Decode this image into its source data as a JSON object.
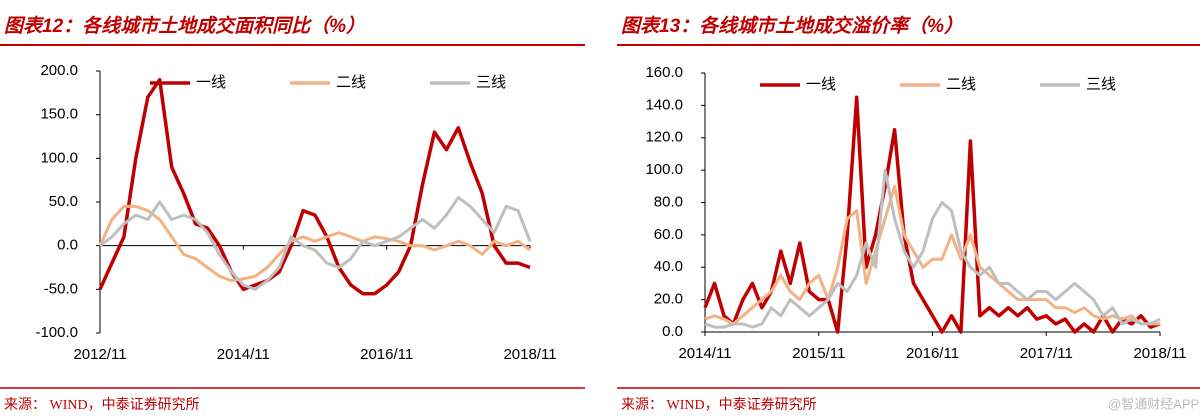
{
  "chart_data": [
    {
      "type": "line",
      "title": "图表12：各线城市土地成交面积同比（%）",
      "source": "来源：  WIND，中泰证券研究所",
      "categories": [
        "2012/11",
        "2013/01",
        "2013/03",
        "2013/05",
        "2013/07",
        "2013/09",
        "2013/11",
        "2014/01",
        "2014/03",
        "2014/05",
        "2014/07",
        "2014/09",
        "2014/11",
        "2015/01",
        "2015/03",
        "2015/05",
        "2015/07",
        "2015/09",
        "2015/11",
        "2016/01",
        "2016/03",
        "2016/05",
        "2016/07",
        "2016/09",
        "2016/11",
        "2017/01",
        "2017/03",
        "2017/05",
        "2017/07",
        "2017/09",
        "2017/11",
        "2018/01",
        "2018/03",
        "2018/05",
        "2018/07",
        "2018/09",
        "2018/11"
      ],
      "xticks": [
        "2012/11",
        "2014/11",
        "2016/11",
        "2018/11"
      ],
      "ylim": [
        -100,
        200
      ],
      "yticks": [
        {
          "value": -100,
          "label": "-100.0"
        },
        {
          "value": -50,
          "label": "-50.0"
        },
        {
          "value": 0,
          "label": "0.0"
        },
        {
          "value": 50,
          "label": "50.0"
        },
        {
          "value": 100,
          "label": "100.0"
        },
        {
          "value": 150,
          "label": "150.0"
        },
        {
          "value": 200,
          "label": "200.0"
        }
      ],
      "legend": "top",
      "grid": false,
      "series": [
        {
          "name": "一线",
          "color": "#c00000",
          "values": [
            -50,
            -20,
            10,
            100,
            170,
            190,
            90,
            60,
            25,
            20,
            0,
            -30,
            -50,
            -45,
            -40,
            -30,
            0,
            40,
            35,
            10,
            -25,
            -45,
            -55,
            -55,
            -45,
            -30,
            0,
            70,
            130,
            110,
            135,
            95,
            60,
            0,
            -20,
            -20,
            -25
          ]
        },
        {
          "name": "二线",
          "color": "#f4b183",
          "values": [
            0,
            30,
            45,
            45,
            40,
            30,
            10,
            -10,
            -15,
            -25,
            -35,
            -40,
            -38,
            -35,
            -25,
            -10,
            5,
            10,
            5,
            10,
            15,
            10,
            5,
            10,
            8,
            5,
            0,
            0,
            -5,
            0,
            5,
            0,
            -10,
            5,
            0,
            5,
            -5
          ]
        },
        {
          "name": "三线",
          "color": "#bfbfbf",
          "values": [
            0,
            10,
            25,
            35,
            30,
            50,
            30,
            35,
            30,
            15,
            -10,
            -30,
            -45,
            -50,
            -40,
            -25,
            10,
            0,
            -5,
            -20,
            -25,
            -15,
            5,
            0,
            5,
            10,
            20,
            30,
            20,
            35,
            55,
            45,
            30,
            15,
            45,
            40,
            5
          ]
        }
      ]
    },
    {
      "type": "line",
      "title": "图表13：各线城市土地成交溢价率（%）",
      "source": "来源：  WIND，中泰证券研究所",
      "categories": [
        "2014/11",
        "2014/12",
        "2015/01",
        "2015/02",
        "2015/03",
        "2015/04",
        "2015/05",
        "2015/06",
        "2015/07",
        "2015/08",
        "2015/09",
        "2015/10",
        "2015/11",
        "2015/12",
        "2016/01",
        "2016/02",
        "2016/03",
        "2016/04",
        "2016/05",
        "2016/06",
        "2016/07",
        "2016/08",
        "2016/09",
        "2016/10",
        "2016/11",
        "2016/12",
        "2017/01",
        "2017/02",
        "2017/03",
        "2017/04",
        "2017/05",
        "2017/06",
        "2017/07",
        "2017/08",
        "2017/09",
        "2017/10",
        "2017/11",
        "2017/12",
        "2018/01",
        "2018/02",
        "2018/03",
        "2018/04",
        "2018/05",
        "2018/06",
        "2018/07",
        "2018/08",
        "2018/09",
        "2018/10",
        "2018/11"
      ],
      "xticks": [
        "2014/11",
        "2015/11",
        "2016/11",
        "2017/11",
        "2018/11"
      ],
      "ylim": [
        0,
        160
      ],
      "yticks": [
        {
          "value": 0,
          "label": "0.0"
        },
        {
          "value": 20,
          "label": "20.0"
        },
        {
          "value": 40,
          "label": "40.0"
        },
        {
          "value": 60,
          "label": "60.0"
        },
        {
          "value": 80,
          "label": "80.0"
        },
        {
          "value": 100,
          "label": "100.0"
        },
        {
          "value": 120,
          "label": "120.0"
        },
        {
          "value": 140,
          "label": "140.0"
        },
        {
          "value": 160,
          "label": "160.0"
        }
      ],
      "legend": "top",
      "grid": false,
      "series": [
        {
          "name": "一线",
          "color": "#c00000",
          "values": [
            15,
            30,
            10,
            5,
            20,
            30,
            15,
            25,
            50,
            30,
            55,
            25,
            20,
            20,
            0,
            60,
            145,
            40,
            60,
            90,
            125,
            60,
            30,
            20,
            10,
            0,
            10,
            0,
            118,
            10,
            15,
            10,
            15,
            10,
            15,
            8,
            10,
            5,
            8,
            0,
            5,
            0,
            10,
            0,
            8,
            5,
            10,
            3,
            5
          ]
        },
        {
          "name": "二线",
          "color": "#f4b183",
          "values": [
            8,
            10,
            8,
            5,
            10,
            15,
            20,
            25,
            35,
            25,
            20,
            30,
            35,
            20,
            40,
            70,
            75,
            30,
            50,
            70,
            90,
            60,
            50,
            40,
            45,
            45,
            60,
            45,
            60,
            40,
            35,
            30,
            25,
            20,
            20,
            20,
            20,
            15,
            15,
            12,
            15,
            10,
            8,
            10,
            8,
            10,
            5,
            5,
            5
          ]
        },
        {
          "name": "三线",
          "color": "#bfbfbf",
          "values": [
            5,
            3,
            3,
            5,
            5,
            3,
            5,
            15,
            10,
            20,
            15,
            10,
            15,
            20,
            30,
            25,
            35,
            55,
            40,
            100,
            70,
            50,
            40,
            50,
            70,
            80,
            75,
            50,
            40,
            35,
            40,
            30,
            30,
            25,
            20,
            25,
            25,
            20,
            25,
            30,
            25,
            20,
            10,
            15,
            5,
            8,
            5,
            5,
            8
          ]
        }
      ]
    }
  ],
  "watermark": "@智通财经APP"
}
